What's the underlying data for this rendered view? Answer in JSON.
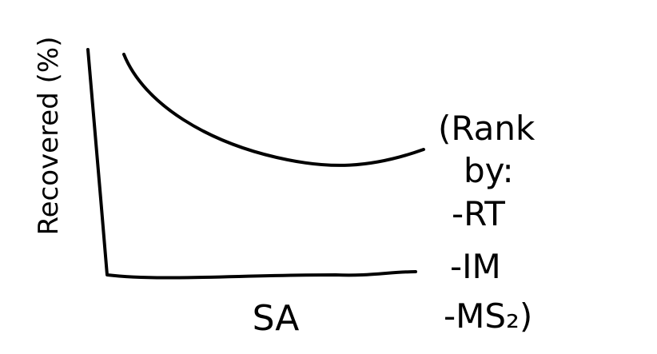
{
  "y_axis_label": "Recovered (%)",
  "x_axis_label": "SA",
  "note": [
    "(Rank",
    "by:",
    "-RT",
    "-IM",
    "-MS₂)"
  ]
}
